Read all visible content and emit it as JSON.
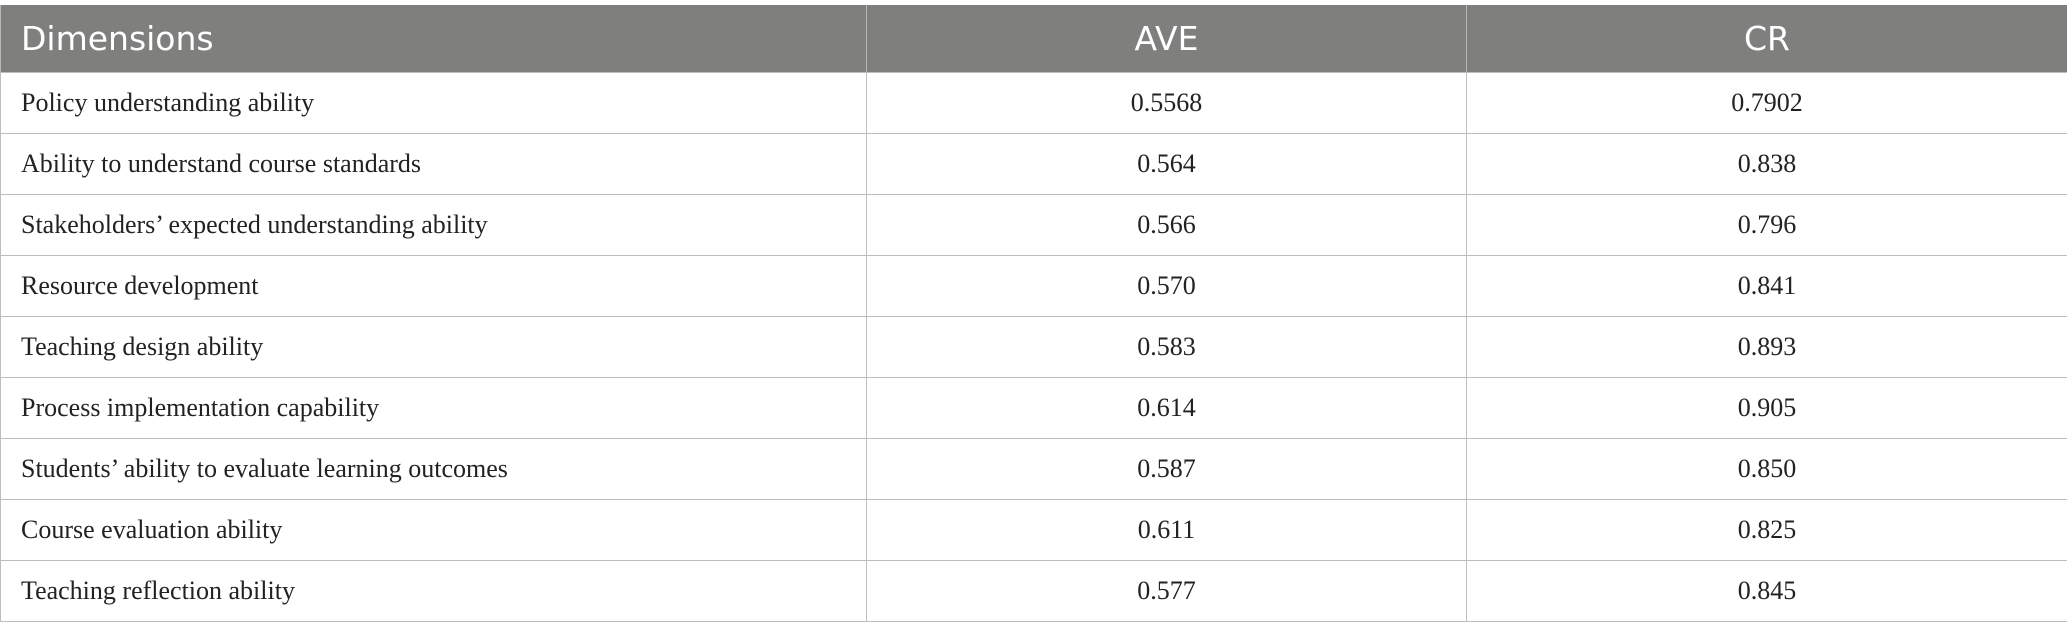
{
  "table": {
    "headers": [
      "Dimensions",
      "AVE",
      "CR"
    ],
    "rows": [
      [
        "Policy understanding ability",
        "0.5568",
        "0.7902"
      ],
      [
        "Ability to understand course standards",
        "0.564",
        "0.838"
      ],
      [
        "Stakeholders’ expected understanding ability",
        "0.566",
        "0.796"
      ],
      [
        "Resource development",
        "0.570",
        "0.841"
      ],
      [
        "Teaching design ability",
        "0.583",
        "0.893"
      ],
      [
        "Process implementation capability",
        "0.614",
        "0.905"
      ],
      [
        "Students’ ability to evaluate learning outcomes",
        "0.587",
        "0.850"
      ],
      [
        "Course evaluation ability",
        "0.611",
        "0.825"
      ],
      [
        "Teaching reflection ability",
        "0.577",
        "0.845"
      ]
    ]
  },
  "colors": {
    "header_bg": "#7f807e",
    "header_text": "#ffffff",
    "border": "#bdbdbd"
  }
}
